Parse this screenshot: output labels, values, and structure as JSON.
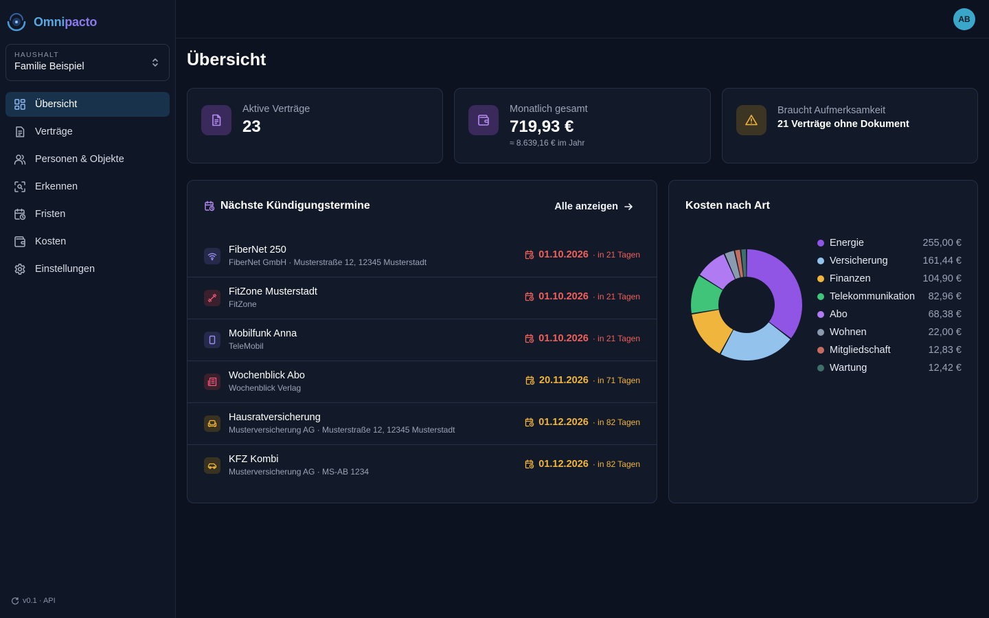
{
  "app": {
    "name_part1": "Omni",
    "name_part2": "pacto"
  },
  "household": {
    "label": "HAUSHALT",
    "value": "Familie Beispiel"
  },
  "nav": [
    {
      "label": "Übersicht",
      "icon": "grid-icon",
      "active": true
    },
    {
      "label": "Verträge",
      "icon": "document-icon"
    },
    {
      "label": "Personen & Objekte",
      "icon": "users-icon"
    },
    {
      "label": "Erkennen",
      "icon": "scan-icon"
    },
    {
      "label": "Fristen",
      "icon": "calendar-clock-icon"
    },
    {
      "label": "Kosten",
      "icon": "wallet-icon"
    },
    {
      "label": "Einstellungen",
      "icon": "gear-icon"
    }
  ],
  "footer": {
    "text": "v0.1 · API"
  },
  "user": {
    "initials": "AB"
  },
  "page": {
    "title": "Übersicht"
  },
  "stats": {
    "active": {
      "label": "Aktive Verträge",
      "value": "23"
    },
    "monthly": {
      "label": "Monatlich gesamt",
      "value": "719,93 €",
      "sub": "≈ 8.639,16 € im Jahr"
    },
    "attention": {
      "label": "Braucht Aufmerksamkeit",
      "value": "21 Verträge ohne Dokument"
    }
  },
  "deadlines": {
    "title": "Nächste Kündigungstermine",
    "show_all": "Alle anzeigen",
    "rows": [
      {
        "title": "FiberNet 250",
        "sub": "FiberNet GmbH · Musterstraße 12, 12345 Musterstadt",
        "date": "01.10.2026",
        "in": "· in 21 Tagen",
        "urgency": "red",
        "icon": "wifi-icon"
      },
      {
        "title": "FitZone Musterstadt",
        "sub": "FitZone",
        "date": "01.10.2026",
        "in": "· in 21 Tagen",
        "urgency": "red",
        "icon": "dumbbell-icon"
      },
      {
        "title": "Mobilfunk Anna",
        "sub": "TeleMobil",
        "date": "01.10.2026",
        "in": "· in 21 Tagen",
        "urgency": "red",
        "icon": "smartphone-icon"
      },
      {
        "title": "Wochenblick Abo",
        "sub": "Wochenblick Verlag",
        "date": "20.11.2026",
        "in": "· in 71 Tagen",
        "urgency": "amber",
        "icon": "newspaper-icon"
      },
      {
        "title": "Hausratversicherung",
        "sub": "Musterversicherung AG · Musterstraße 12, 12345 Musterstadt",
        "date": "01.12.2026",
        "in": "· in 82 Tagen",
        "urgency": "amber",
        "icon": "sofa-icon"
      },
      {
        "title": "KFZ Kombi",
        "sub": "Musterversicherung AG · MS-AB 1234",
        "date": "01.12.2026",
        "in": "· in 82 Tagen",
        "urgency": "amber",
        "icon": "car-icon"
      }
    ]
  },
  "costs": {
    "title": "Kosten nach Art",
    "items": [
      {
        "name": "Energie",
        "amount": "255,00 €",
        "value": 255.0,
        "color": "#9155e6"
      },
      {
        "name": "Versicherung",
        "amount": "161,44 €",
        "value": 161.44,
        "color": "#93c3ec"
      },
      {
        "name": "Finanzen",
        "amount": "104,90 €",
        "value": 104.9,
        "color": "#f0b53c"
      },
      {
        "name": "Telekommunikation",
        "amount": "82,96 €",
        "value": 82.96,
        "color": "#3fc47a"
      },
      {
        "name": "Abo",
        "amount": "68,38 €",
        "value": 68.38,
        "color": "#b07af3"
      },
      {
        "name": "Wohnen",
        "amount": "22,00 €",
        "value": 22.0,
        "color": "#8a9bb0"
      },
      {
        "name": "Mitgliedschaft",
        "amount": "12,83 €",
        "value": 12.83,
        "color": "#c36d60"
      },
      {
        "name": "Wartung",
        "amount": "12,42 €",
        "value": 12.42,
        "color": "#3f6f6a"
      }
    ]
  }
}
